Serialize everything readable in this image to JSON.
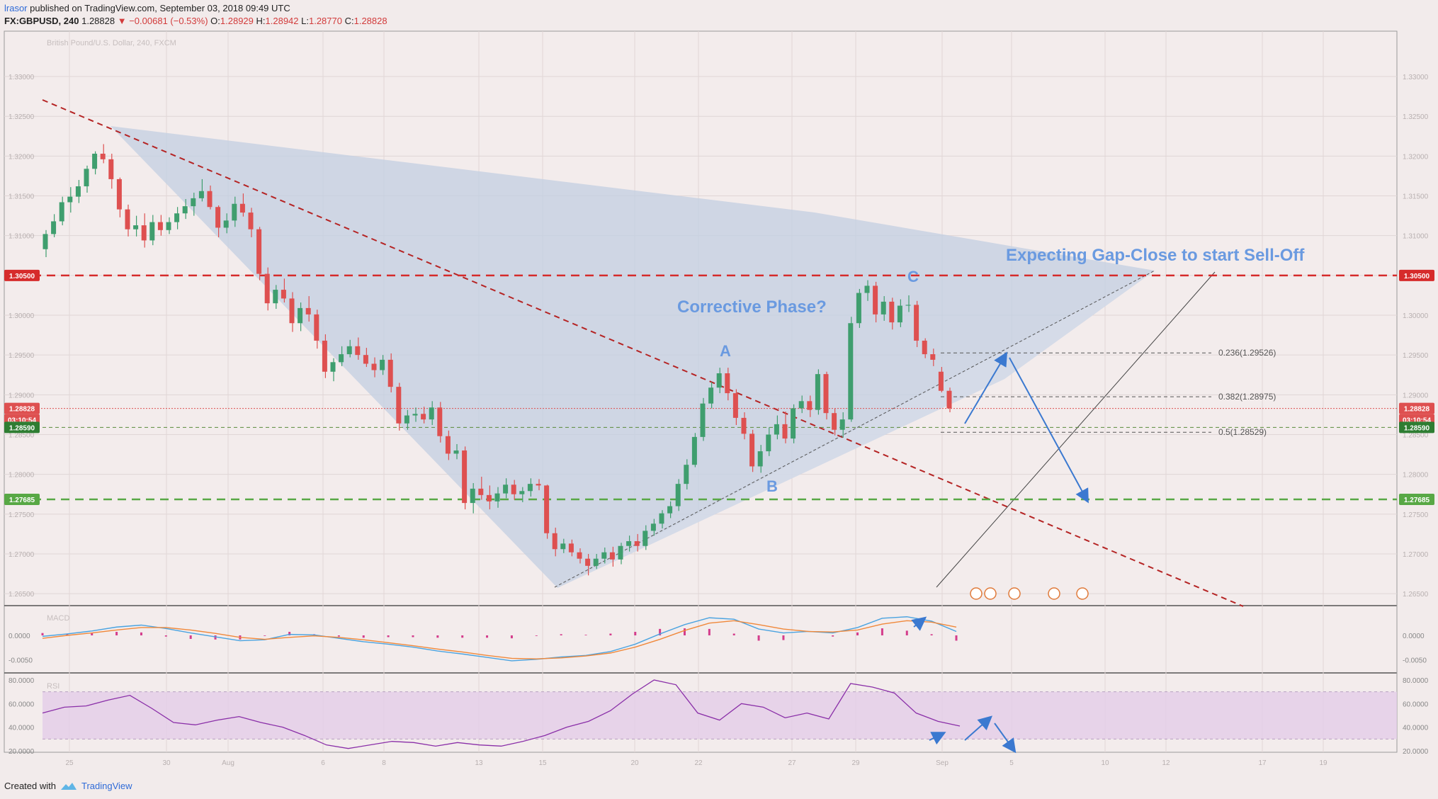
{
  "header": {
    "user": "lrasor",
    "published": "published on TradingView.com, September 03, 2018 09:49 UTC",
    "symbol": "FX:GBPUSD, 240",
    "last": "1.28828",
    "change": "▼ −0.00681 (−0.53%)",
    "o_label": "O:",
    "o": "1.28929",
    "h_label": "H:",
    "h": "1.28942",
    "l_label": "L:",
    "l": "1.28770",
    "c_label": "C:",
    "c": "1.28828"
  },
  "footer": {
    "created_with": "Created with",
    "brand": "TradingView"
  },
  "colors": {
    "bg": "#f2ebeb",
    "up": "#3f9e6e",
    "down": "#de5050",
    "fill": "#c4d0e2",
    "fill2": "#d7dde9",
    "blue": "#3b79d0",
    "resistance": "#d62b2b",
    "support": "#58a845",
    "gap": "#5a8b3a",
    "macd": "#4aa3e0",
    "signal": "#f0883a",
    "hist": "#d43d8c",
    "rsi": "#8a2fa8",
    "rsiband": "#e3cde8"
  },
  "chart_data": [
    {
      "type": "candlestick",
      "title": "British Pound/U.S. Dollar, 240, FXCM",
      "ylim": [
        1.2635,
        1.3357
      ],
      "y_ticks": [
        "1.33000",
        "1.32500",
        "1.32000",
        "1.31500",
        "1.31000",
        "1.30500",
        "1.30000",
        "1.29500",
        "1.29000",
        "1.28500",
        "1.28000",
        "1.27500",
        "1.27000",
        "1.26500"
      ],
      "x_ticks": [
        "25",
        "30",
        "Aug",
        "6",
        "8",
        "13",
        "15",
        "20",
        "22",
        "27",
        "29",
        "Sep",
        "5",
        "10",
        "12",
        "17",
        "19"
      ],
      "ohlc_key": {
        "ohlc": [
          [
            1.3083,
            1.3107,
            1.3073,
            1.3102
          ],
          [
            1.3102,
            1.3127,
            1.3098,
            1.3118
          ],
          [
            1.3118,
            1.3149,
            1.3113,
            1.3142
          ],
          [
            1.3142,
            1.3161,
            1.3129,
            1.3149
          ],
          [
            1.3149,
            1.317,
            1.3141,
            1.3162
          ],
          [
            1.3162,
            1.3188,
            1.3154,
            1.3184
          ],
          [
            1.3184,
            1.3206,
            1.3177,
            1.3203
          ],
          [
            1.3203,
            1.3215,
            1.3191,
            1.3196
          ],
          [
            1.3196,
            1.3203,
            1.3159,
            1.3171
          ],
          [
            1.3171,
            1.3173,
            1.3123,
            1.3133
          ],
          [
            1.3133,
            1.3139,
            1.3099,
            1.3108
          ],
          [
            1.3108,
            1.3125,
            1.3099,
            1.3113
          ],
          [
            1.3113,
            1.3128,
            1.3085,
            1.3094
          ],
          [
            1.3094,
            1.3126,
            1.3088,
            1.3117
          ],
          [
            1.3117,
            1.3126,
            1.31,
            1.3107
          ],
          [
            1.3107,
            1.3123,
            1.3102,
            1.3117
          ],
          [
            1.3117,
            1.3136,
            1.3108,
            1.3128
          ],
          [
            1.3128,
            1.3146,
            1.3121,
            1.3137
          ],
          [
            1.3137,
            1.3154,
            1.3125,
            1.3147
          ],
          [
            1.3147,
            1.3171,
            1.3143,
            1.3156
          ],
          [
            1.3156,
            1.3163,
            1.3133,
            1.3136
          ],
          [
            1.3136,
            1.3138,
            1.3098,
            1.311
          ],
          [
            1.311,
            1.3128,
            1.3103,
            1.3119
          ],
          [
            1.3119,
            1.3149,
            1.3111,
            1.314
          ],
          [
            1.314,
            1.3153,
            1.3124,
            1.3129
          ],
          [
            1.3129,
            1.3135,
            1.3098,
            1.3108
          ],
          [
            1.3108,
            1.3111,
            1.3044,
            1.3052
          ],
          [
            1.3052,
            1.306,
            1.3006,
            1.3015
          ],
          [
            1.3015,
            1.3038,
            1.3008,
            1.3032
          ],
          [
            1.3032,
            1.3046,
            1.3016,
            1.3021
          ],
          [
            1.3021,
            1.3029,
            1.2979,
            1.299
          ],
          [
            1.299,
            1.3016,
            1.298,
            1.3009
          ],
          [
            1.3009,
            1.3024,
            1.2992,
            1.3001
          ],
          [
            1.3001,
            1.3007,
            1.2958,
            1.2968
          ],
          [
            1.2968,
            1.2976,
            1.2921,
            1.2929
          ],
          [
            1.2929,
            1.2946,
            1.2917,
            1.2941
          ],
          [
            1.2941,
            1.2961,
            1.2936,
            1.2951
          ],
          [
            1.2951,
            1.2969,
            1.2947,
            1.2961
          ],
          [
            1.2961,
            1.2972,
            1.2944,
            1.295
          ],
          [
            1.295,
            1.2959,
            1.2935,
            1.2939
          ],
          [
            1.2939,
            1.2947,
            1.2922,
            1.2931
          ],
          [
            1.2931,
            1.295,
            1.2925,
            1.2944
          ],
          [
            1.2944,
            1.2952,
            1.2903,
            1.291
          ],
          [
            1.291,
            1.2915,
            1.2855,
            1.2864
          ],
          [
            1.2864,
            1.2881,
            1.2856,
            1.2874
          ],
          [
            1.2874,
            1.2884,
            1.2866,
            1.2876
          ],
          [
            1.2876,
            1.2885,
            1.2864,
            1.2869
          ],
          [
            1.2869,
            1.2892,
            1.2862,
            1.2884
          ],
          [
            1.2884,
            1.2891,
            1.284,
            1.2848
          ],
          [
            1.2848,
            1.2855,
            1.2818,
            1.2826
          ],
          [
            1.2826,
            1.2838,
            1.2819,
            1.283
          ],
          [
            1.283,
            1.2835,
            1.2756,
            1.2764
          ],
          [
            1.2764,
            1.2789,
            1.2751,
            1.2782
          ],
          [
            1.2782,
            1.2797,
            1.2768,
            1.2774
          ],
          [
            1.2774,
            1.2786,
            1.2756,
            1.2766
          ],
          [
            1.2766,
            1.2784,
            1.2758,
            1.2776
          ],
          [
            1.2776,
            1.2795,
            1.277,
            1.2787
          ],
          [
            1.2787,
            1.2793,
            1.2768,
            1.2775
          ],
          [
            1.2775,
            1.2784,
            1.2765,
            1.2779
          ],
          [
            1.2779,
            1.2795,
            1.2772,
            1.2788
          ],
          [
            1.2788,
            1.2794,
            1.278,
            1.2786
          ],
          [
            1.2786,
            1.2787,
            1.2719,
            1.2726
          ],
          [
            1.2726,
            1.2733,
            1.2697,
            1.2706
          ],
          [
            1.2706,
            1.2719,
            1.2701,
            1.2713
          ],
          [
            1.2713,
            1.2718,
            1.2697,
            1.2702
          ],
          [
            1.2702,
            1.2707,
            1.2688,
            1.2694
          ],
          [
            1.2694,
            1.27,
            1.2673,
            1.2685
          ],
          [
            1.2685,
            1.27,
            1.2681,
            1.2694
          ],
          [
            1.2694,
            1.2708,
            1.2688,
            1.2702
          ],
          [
            1.2702,
            1.2709,
            1.2684,
            1.2693
          ],
          [
            1.2693,
            1.2714,
            1.2687,
            1.271
          ],
          [
            1.271,
            1.2723,
            1.2703,
            1.2716
          ],
          [
            1.2716,
            1.2725,
            1.2703,
            1.271
          ],
          [
            1.271,
            1.2736,
            1.2705,
            1.2729
          ],
          [
            1.2729,
            1.2744,
            1.2723,
            1.2738
          ],
          [
            1.2738,
            1.2755,
            1.2732,
            1.2751
          ],
          [
            1.2751,
            1.2766,
            1.2745,
            1.276
          ],
          [
            1.276,
            1.2794,
            1.2754,
            1.2788
          ],
          [
            1.2788,
            1.2819,
            1.2781,
            1.2812
          ],
          [
            1.2812,
            1.2852,
            1.2809,
            1.2847
          ],
          [
            1.2847,
            1.2896,
            1.2842,
            1.2889
          ],
          [
            1.2889,
            1.2916,
            1.2883,
            1.2909
          ],
          [
            1.2909,
            1.2934,
            1.2902,
            1.2927
          ],
          [
            1.2927,
            1.2934,
            1.2893,
            1.2902
          ],
          [
            1.2902,
            1.2907,
            1.2862,
            1.2871
          ],
          [
            1.2871,
            1.2878,
            1.2844,
            1.2851
          ],
          [
            1.2851,
            1.2856,
            1.2803,
            1.281
          ],
          [
            1.281,
            1.2837,
            1.2802,
            1.2829
          ],
          [
            1.2829,
            1.2859,
            1.2823,
            1.285
          ],
          [
            1.285,
            1.2874,
            1.2844,
            1.2863
          ],
          [
            1.2863,
            1.2879,
            1.2839,
            1.2845
          ],
          [
            1.2845,
            1.2888,
            1.2839,
            1.2883
          ],
          [
            1.2883,
            1.2899,
            1.2877,
            1.2892
          ],
          [
            1.2892,
            1.2899,
            1.2872,
            1.2881
          ],
          [
            1.2881,
            1.2932,
            1.2875,
            1.2926
          ],
          [
            1.2926,
            1.2929,
            1.2869,
            1.2877
          ],
          [
            1.2877,
            1.2883,
            1.2849,
            1.2856
          ],
          [
            1.2856,
            1.2878,
            1.2846,
            1.2869
          ],
          [
            1.2869,
            1.2998,
            1.2866,
            1.299
          ],
          [
            1.299,
            1.3033,
            1.2984,
            1.3028
          ],
          [
            1.3028,
            1.3044,
            1.3018,
            1.3037
          ],
          [
            1.3037,
            1.3042,
            1.2991,
            1.3001
          ],
          [
            1.3001,
            1.3024,
            1.2993,
            1.3017
          ],
          [
            1.3017,
            1.3022,
            1.2982,
            1.2991
          ],
          [
            1.2991,
            1.302,
            1.2985,
            1.3012
          ],
          [
            1.3012,
            1.3025,
            1.3004,
            1.3013
          ],
          [
            1.3013,
            1.3018,
            1.296,
            1.2968
          ],
          [
            1.2968,
            1.2971,
            1.2946,
            1.2951
          ],
          [
            1.2951,
            1.2958,
            1.2936,
            1.2944
          ],
          [
            1.2929,
            1.2935,
            1.2903,
            1.2905
          ],
          [
            1.2905,
            1.2909,
            1.2878,
            1.2883
          ]
        ]
      },
      "annotations": [
        "A",
        "B",
        "C",
        "Corrective Phase?",
        "Expecting Gap-Close to start Sell-Off"
      ],
      "fib_levels": [
        {
          "label": "0.236(1.29526)",
          "value": 1.29526
        },
        {
          "label": "0.382(1.28975)",
          "value": 1.28975
        },
        {
          "label": "0.5(1.28529)",
          "value": 1.28529
        }
      ],
      "price_labels": [
        {
          "value": "1.30500",
          "color": "#d62b2b"
        },
        {
          "value": "1.28828",
          "color": "#de5050"
        },
        {
          "value": "03:10:54",
          "color": "#de5050"
        },
        {
          "value": "1.28590",
          "color": "#2e7d32"
        },
        {
          "value": "1.27685",
          "color": "#58a845"
        }
      ]
    },
    {
      "type": "line",
      "title": "MACD",
      "y_ticks": [
        "0.0000",
        "-0.0050"
      ],
      "series": [
        {
          "values": [
            -0.0002,
            0.0003,
            0.0009,
            0.0017,
            0.0021,
            0.0014,
            0.0005,
            -0.0003,
            -0.0011,
            -0.0009,
            0.0002,
            0.0001,
            -0.0006,
            -0.0013,
            -0.0018,
            -0.0024,
            -0.0032,
            -0.0038,
            -0.0045,
            -0.0052,
            -0.0049,
            -0.0044,
            -0.0041,
            -0.0033,
            -0.0018,
            0.0003,
            0.0022,
            0.0036,
            0.0033,
            0.0013,
            0.0005,
            0.0008,
            0.0005,
            0.0016,
            0.0035,
            0.0038,
            0.0029,
            0.0008
          ]
        },
        {
          "values": [
            -0.0006,
            0.0,
            0.0005,
            0.0011,
            0.0016,
            0.0016,
            0.0011,
            0.0004,
            -0.0004,
            -0.0008,
            -0.0004,
            -0.0001,
            -0.0004,
            -0.0009,
            -0.0015,
            -0.0021,
            -0.0028,
            -0.0034,
            -0.0041,
            -0.0047,
            -0.0048,
            -0.0046,
            -0.0042,
            -0.0036,
            -0.0024,
            -0.0008,
            0.001,
            0.0025,
            0.003,
            0.0022,
            0.0013,
            0.0008,
            0.0007,
            0.0011,
            0.0023,
            0.003,
            0.0027,
            0.0017
          ]
        }
      ]
    },
    {
      "type": "line",
      "title": "RSI",
      "y_ticks": [
        "80.0000",
        "60.0000",
        "40.0000",
        "20.0000"
      ],
      "band": [
        30,
        70
      ],
      "values": [
        52,
        57,
        58,
        63,
        67,
        56,
        44,
        42,
        46,
        49,
        44,
        40,
        33,
        25,
        22,
        25,
        28,
        27,
        24,
        27,
        25,
        24,
        28,
        33,
        40,
        45,
        54,
        68,
        80,
        76,
        52,
        46,
        60,
        57,
        48,
        52,
        47,
        77,
        74,
        69,
        52,
        45,
        41
      ]
    }
  ]
}
